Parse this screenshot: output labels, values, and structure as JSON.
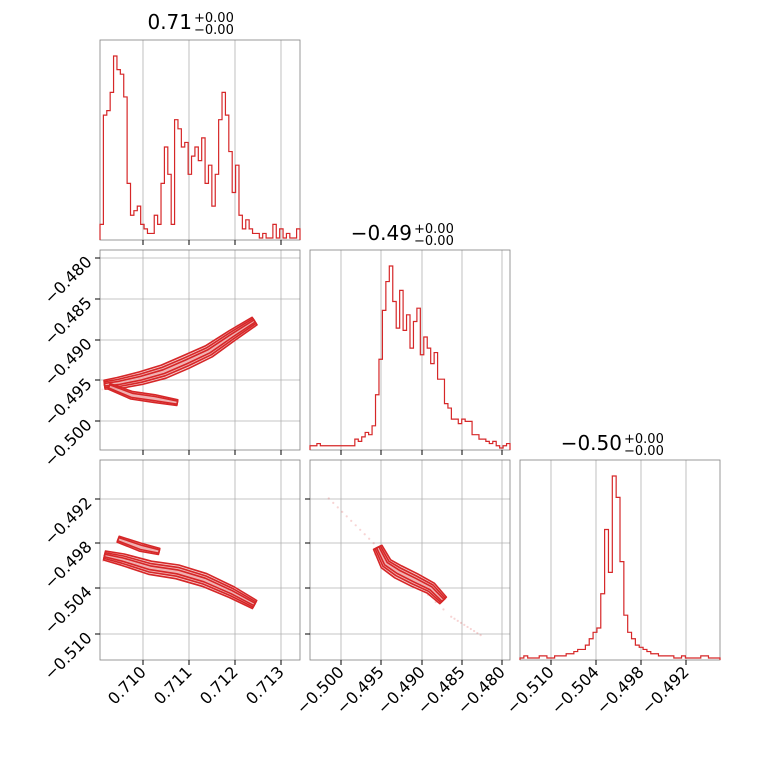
{
  "chart_data": [
    {
      "type": "histogram",
      "panel": "p00",
      "title": {
        "main": "0.71",
        "sup": "+0.00",
        "sub": "−0.00"
      },
      "xticks": [
        "0.710",
        "0.711",
        "0.712",
        "0.713"
      ],
      "xlim": [
        0.7091,
        0.7135
      ],
      "bins_lo": 0.7091,
      "bins_hi": 0.7135,
      "counts": [
        3,
        27,
        28,
        32,
        40,
        37,
        36,
        31,
        12,
        5,
        6,
        7,
        3,
        2,
        1,
        1,
        5,
        3,
        12,
        20,
        14,
        3,
        26,
        24,
        20,
        21,
        14,
        18,
        20,
        17,
        22,
        12,
        16,
        7,
        14,
        26,
        32,
        27,
        19,
        10,
        16,
        5,
        2,
        4,
        2,
        1,
        1,
        0,
        1,
        0,
        0,
        3,
        0,
        2,
        0,
        1,
        0,
        0,
        2
      ],
      "color": "#d62728"
    },
    {
      "type": "contour",
      "panel": "p10",
      "xlim": [
        0.7091,
        0.7135
      ],
      "ylim": [
        -0.5033,
        -0.4788
      ],
      "yticks": [
        "−0.480",
        "−0.485",
        "−0.490",
        "−0.495",
        "−0.500"
      ],
      "ridge": [
        [
          0.7092,
          -0.4953
        ],
        [
          0.7095,
          -0.4951
        ],
        [
          0.71,
          -0.4945
        ],
        [
          0.7105,
          -0.4937
        ],
        [
          0.711,
          -0.4925
        ],
        [
          0.7115,
          -0.4912
        ],
        [
          0.712,
          -0.4893
        ],
        [
          0.7125,
          -0.4875
        ]
      ],
      "branch": [
        [
          0.7093,
          -0.4955
        ],
        [
          0.7098,
          -0.4966
        ],
        [
          0.7103,
          -0.497
        ],
        [
          0.7108,
          -0.4975
        ]
      ],
      "color": "#d62728"
    },
    {
      "type": "contour",
      "panel": "p20",
      "xlim": [
        0.7091,
        0.7135
      ],
      "ylim": [
        -0.5128,
        -0.4883
      ],
      "yticks": [
        "−0.492",
        "−0.498",
        "−0.504",
        "−0.510"
      ],
      "ridge": [
        [
          0.7092,
          -0.5
        ],
        [
          0.7096,
          -0.5005
        ],
        [
          0.7102,
          -0.5015
        ],
        [
          0.7108,
          -0.502
        ],
        [
          0.7114,
          -0.503
        ],
        [
          0.712,
          -0.5045
        ],
        [
          0.7125,
          -0.506
        ]
      ],
      "branch": [
        [
          0.7095,
          -0.498
        ],
        [
          0.71,
          -0.499
        ],
        [
          0.7104,
          -0.4995
        ]
      ],
      "color": "#d62728"
    },
    {
      "type": "histogram",
      "panel": "p11",
      "title": {
        "main": "−0.49",
        "sup": "+0.00",
        "sub": "−0.00"
      },
      "xlim": [
        -0.5033,
        -0.4788
      ],
      "bins_lo": -0.5033,
      "bins_hi": -0.4788,
      "counts": [
        1,
        1,
        2,
        1,
        1,
        1,
        1,
        1,
        1,
        1,
        1,
        1,
        1,
        4,
        3,
        5,
        7,
        6,
        10,
        24,
        40,
        62,
        75,
        82,
        66,
        54,
        71,
        53,
        60,
        45,
        57,
        63,
        42,
        50,
        45,
        38,
        43,
        31,
        31,
        20,
        18,
        13,
        13,
        11,
        13,
        12,
        12,
        6,
        6,
        4,
        4,
        3,
        2,
        3,
        1,
        0,
        1,
        2
      ],
      "color": "#d62728"
    },
    {
      "type": "contour",
      "panel": "p21",
      "xlim": [
        -0.5033,
        -0.4788
      ],
      "ylim": [
        -0.5128,
        -0.4883
      ],
      "xticks": [
        "−0.500",
        "−0.495",
        "−0.490",
        "−0.485",
        "−0.480"
      ],
      "ridge": [
        [
          -0.495,
          -0.499
        ],
        [
          -0.494,
          -0.501
        ],
        [
          -0.4925,
          -0.502
        ],
        [
          -0.4905,
          -0.503
        ],
        [
          -0.4885,
          -0.504
        ],
        [
          -0.487,
          -0.5055
        ]
      ],
      "scatter_line": [
        [
          -0.501,
          -0.493
        ],
        [
          -0.4955,
          -0.4985
        ],
        [
          -0.486,
          -0.5075
        ],
        [
          -0.482,
          -0.51
        ]
      ],
      "color": "#d62728"
    },
    {
      "type": "histogram",
      "panel": "p22",
      "title": {
        "main": "−0.50",
        "sup": "+0.00",
        "sub": "−0.00"
      },
      "xlim": [
        -0.5128,
        -0.4883
      ],
      "xticks": [
        "−0.510",
        "−0.504",
        "−0.498",
        "−0.492"
      ],
      "bins_lo": -0.5128,
      "bins_hi": -0.4883,
      "counts": [
        0,
        1,
        0,
        0,
        0,
        1,
        1,
        0,
        0,
        1,
        1,
        1,
        2,
        2,
        3,
        4,
        4,
        6,
        9,
        12,
        14,
        30,
        60,
        40,
        85,
        75,
        45,
        20,
        12,
        9,
        6,
        5,
        4,
        3,
        2,
        2,
        1,
        1,
        1,
        1,
        0,
        0,
        1,
        0,
        0,
        0,
        0,
        1,
        1,
        0,
        0,
        0
      ],
      "color": "#d62728"
    }
  ]
}
